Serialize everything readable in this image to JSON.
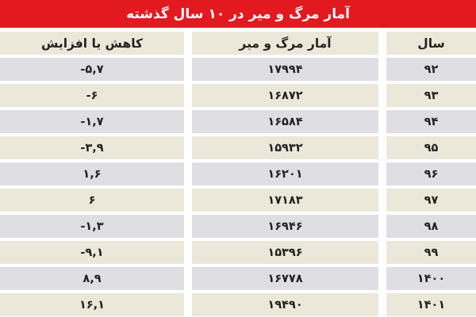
{
  "title": "آمار مرگ و میر در ۱۰ سال گذشته",
  "table": {
    "columns": [
      {
        "key": "year",
        "label": "سال"
      },
      {
        "key": "deaths",
        "label": "آمار مرگ و میر"
      },
      {
        "key": "change",
        "label": "کاهش یا افزایش"
      }
    ],
    "rows": [
      {
        "year": "۹۲",
        "deaths": "۱۷۹۹۴",
        "change": "-۵,۷"
      },
      {
        "year": "۹۳",
        "deaths": "۱۶۸۷۲",
        "change": "-۶"
      },
      {
        "year": "۹۴",
        "deaths": "۱۶۵۸۴",
        "change": "-۱,۷"
      },
      {
        "year": "۹۵",
        "deaths": "۱۵۹۳۲",
        "change": "-۳,۹"
      },
      {
        "year": "۹۶",
        "deaths": "۱۶۲۰۱",
        "change": "۱,۶"
      },
      {
        "year": "۹۷",
        "deaths": "۱۷۱۸۳",
        "change": "۶"
      },
      {
        "year": "۹۸",
        "deaths": "۱۶۹۴۶",
        "change": "-۱,۳"
      },
      {
        "year": "۹۹",
        "deaths": "۱۵۳۹۶",
        "change": "-۹,۱"
      },
      {
        "year": "۱۴۰۰",
        "deaths": "۱۶۷۷۸",
        "change": "۸,۹"
      },
      {
        "year": "۱۴۰۱",
        "deaths": "۱۹۴۹۰",
        "change": "۱۶,۱"
      }
    ]
  },
  "colors": {
    "header_red": "#e2191f",
    "row_gray": "#dfdee3",
    "row_cream": "#ebe8da",
    "text": "#262220",
    "title_text": "#ffffff"
  },
  "chart_data": {
    "type": "table",
    "title": "آمار مرگ و میر در ۱۰ سال گذشته",
    "columns": [
      "سال",
      "آمار مرگ و میر",
      "کاهش یا افزایش"
    ],
    "years": [
      "92",
      "93",
      "94",
      "95",
      "96",
      "97",
      "98",
      "99",
      "1400",
      "1401"
    ],
    "deaths": [
      17994,
      16872,
      16584,
      15932,
      16201,
      17183,
      16946,
      15396,
      16778,
      19490
    ],
    "change_percent": [
      -5.7,
      -6,
      -1.7,
      -3.9,
      1.6,
      6,
      -1.3,
      -9.1,
      8.9,
      16.1
    ]
  }
}
